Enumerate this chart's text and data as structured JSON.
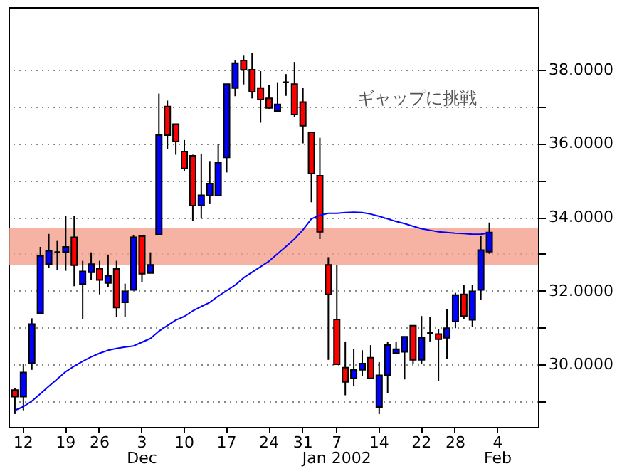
{
  "chart_data": {
    "type": "candlestick",
    "categories": [
      null,
      "12",
      null,
      null,
      null,
      null,
      "19",
      null,
      null,
      null,
      "26",
      null,
      null,
      null,
      null,
      "3\nDec",
      null,
      null,
      null,
      null,
      "10",
      null,
      null,
      null,
      null,
      "17",
      null,
      null,
      null,
      null,
      "24",
      null,
      null,
      null,
      "31",
      null,
      null,
      null,
      "7\nJan 2002",
      null,
      null,
      null,
      null,
      "14",
      null,
      null,
      null,
      null,
      "22",
      null,
      null,
      null,
      "28",
      null,
      null,
      null,
      null,
      "4\nFeb",
      null,
      null,
      null,
      null
    ],
    "ohlc": [
      [
        29.3,
        29.35,
        28.65,
        29.12
      ],
      [
        29.12,
        30.0,
        28.75,
        29.78
      ],
      [
        30.03,
        31.25,
        29.85,
        31.09
      ],
      [
        31.38,
        33.19,
        31.38,
        32.94
      ],
      [
        32.72,
        33.54,
        32.62,
        33.08
      ],
      [
        33.05,
        33.35,
        32.56,
        33.05
      ],
      [
        33.05,
        34.02,
        32.54,
        33.19
      ],
      [
        33.45,
        34.02,
        32.12,
        32.69
      ],
      [
        32.18,
        32.81,
        31.22,
        32.52
      ],
      [
        32.5,
        33.04,
        32.28,
        32.72
      ],
      [
        32.6,
        32.81,
        31.9,
        32.29
      ],
      [
        32.21,
        32.98,
        32.09,
        32.4
      ],
      [
        32.59,
        32.81,
        31.29,
        31.54
      ],
      [
        31.68,
        32.19,
        31.29,
        31.98
      ],
      [
        32.02,
        33.5,
        32.02,
        33.45
      ],
      [
        33.48,
        33.48,
        32.24,
        32.46
      ],
      [
        32.48,
        33.04,
        32.48,
        32.7
      ],
      [
        33.52,
        37.35,
        33.52,
        36.22
      ],
      [
        37.0,
        37.16,
        35.85,
        36.22
      ],
      [
        36.52,
        36.52,
        35.69,
        36.05
      ],
      [
        35.78,
        36.09,
        35.25,
        35.32
      ],
      [
        35.66,
        35.69,
        33.9,
        34.31
      ],
      [
        34.31,
        35.7,
        33.98,
        34.59
      ],
      [
        34.58,
        35.52,
        34.35,
        34.91
      ],
      [
        34.58,
        35.98,
        34.58,
        35.48
      ],
      [
        35.62,
        37.61,
        35.21,
        37.61
      ],
      [
        37.5,
        38.25,
        37.28,
        38.18
      ],
      [
        38.25,
        38.38,
        37.6,
        38.0
      ],
      [
        38.0,
        38.46,
        37.22,
        37.4
      ],
      [
        37.5,
        37.96,
        36.56,
        37.19
      ],
      [
        37.22,
        37.59,
        36.94,
        36.96
      ],
      [
        36.88,
        37.66,
        36.88,
        37.06
      ],
      [
        37.66,
        37.88,
        37.29,
        37.66
      ],
      [
        37.61,
        38.21,
        36.72,
        36.78
      ],
      [
        37.12,
        37.5,
        36.0,
        36.48
      ],
      [
        36.3,
        36.3,
        34.4,
        35.18
      ],
      [
        35.12,
        36.15,
        33.4,
        33.6
      ],
      [
        32.7,
        32.91,
        30.12,
        31.9
      ],
      [
        31.22,
        32.69,
        30.0,
        30.0
      ],
      [
        29.91,
        30.62,
        29.16,
        29.52
      ],
      [
        29.62,
        30.41,
        29.4,
        29.85
      ],
      [
        29.85,
        30.38,
        29.69,
        30.02
      ],
      [
        30.18,
        30.52,
        29.62,
        29.62
      ],
      [
        28.84,
        30.06,
        28.65,
        29.7
      ],
      [
        29.7,
        30.62,
        29.21,
        30.52
      ],
      [
        30.3,
        30.62,
        30.3,
        30.41
      ],
      [
        30.34,
        30.75,
        29.59,
        30.75
      ],
      [
        31.05,
        31.05,
        30.0,
        30.12
      ],
      [
        30.12,
        31.31,
        30.0,
        30.72
      ],
      [
        30.85,
        31.28,
        30.62,
        30.85
      ],
      [
        30.82,
        30.95,
        29.54,
        30.68
      ],
      [
        30.72,
        31.5,
        30.15,
        30.98
      ],
      [
        31.16,
        31.94,
        30.98,
        31.88
      ],
      [
        31.9,
        32.15,
        31.22,
        31.31
      ],
      [
        31.21,
        32.15,
        31.02,
        31.98
      ],
      [
        32.02,
        33.48,
        31.75,
        33.1
      ],
      [
        33.06,
        33.85,
        33.0,
        33.58
      ],
      null,
      null,
      null,
      null,
      null
    ],
    "colors": [
      "#ff0000",
      "#0000ff",
      "#0000ff",
      "#0000ff",
      "#0000ff",
      "#000000",
      "#0000ff",
      "#ff0000",
      "#0000ff",
      "#0000ff",
      "#ff0000",
      "#0000ff",
      "#ff0000",
      "#0000ff",
      "#0000ff",
      "#ff0000",
      "#0000ff",
      "#0000ff",
      "#ff0000",
      "#ff0000",
      "#ff0000",
      "#ff0000",
      "#0000ff",
      "#0000ff",
      "#0000ff",
      "#0000ff",
      "#0000ff",
      "#ff0000",
      "#ff0000",
      "#ff0000",
      "#ff0000",
      "#0000ff",
      "#000000",
      "#ff0000",
      "#ff0000",
      "#ff0000",
      "#ff0000",
      "#ff0000",
      "#ff0000",
      "#ff0000",
      "#0000ff",
      "#0000ff",
      "#ff0000",
      "#0000ff",
      "#0000ff",
      "#0000ff",
      "#0000ff",
      "#ff0000",
      "#0000ff",
      "#000000",
      "#ff0000",
      "#0000ff",
      "#0000ff",
      "#ff0000",
      "#0000ff",
      "#0000ff",
      "#0000ff",
      null,
      null,
      null,
      null,
      null
    ],
    "series": [
      {
        "type": "line",
        "color": "#0000ff",
        "values": [
          28.75,
          28.85,
          29.0,
          29.2,
          29.4,
          29.6,
          29.8,
          29.95,
          30.08,
          30.2,
          30.3,
          30.38,
          30.43,
          30.47,
          30.5,
          30.6,
          30.7,
          30.9,
          31.05,
          31.2,
          31.3,
          31.45,
          31.57,
          31.68,
          31.85,
          32.0,
          32.15,
          32.35,
          32.5,
          32.65,
          32.8,
          33.0,
          33.2,
          33.4,
          33.65,
          33.95,
          34.05,
          34.1,
          34.1,
          34.12,
          34.13,
          34.12,
          34.08,
          34.02,
          33.95,
          33.88,
          33.82,
          33.75,
          33.68,
          33.64,
          33.6,
          33.58,
          33.56,
          33.55,
          33.53,
          33.53,
          33.57,
          null,
          null,
          null,
          null,
          null
        ]
      }
    ],
    "bands": [
      {
        "axis": "y",
        "from": 32.7,
        "to": 33.7,
        "color": "#f4a08c"
      }
    ],
    "annotations": [
      "ギャップに挑戦"
    ],
    "ylim": [
      28.3,
      39.7
    ],
    "yticks": [
      {
        "value": 29,
        "label": null
      },
      {
        "value": 30,
        "label": "30.0000"
      },
      {
        "value": 31,
        "label": null
      },
      {
        "value": 32,
        "label": "32.0000"
      },
      {
        "value": 33,
        "label": null
      },
      {
        "value": 34,
        "label": "34.0000"
      },
      {
        "value": 35,
        "label": null
      },
      {
        "value": 36,
        "label": "36.0000"
      },
      {
        "value": 37,
        "label": null
      },
      {
        "value": 38,
        "label": "38.0000"
      }
    ],
    "grid": "y"
  }
}
